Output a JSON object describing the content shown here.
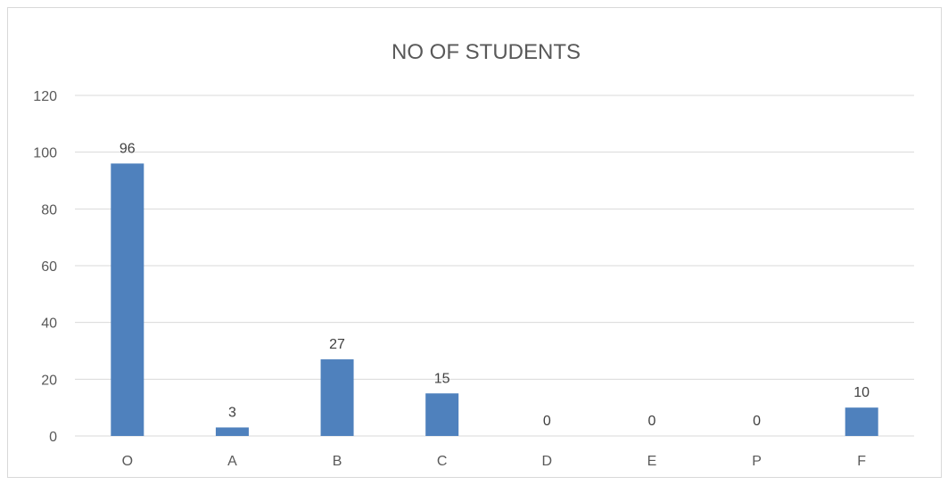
{
  "chart_data": {
    "type": "bar",
    "title": "NO OF STUDENTS",
    "categories": [
      "O",
      "A",
      "B",
      "C",
      "D",
      "E",
      "P",
      "F"
    ],
    "values": [
      96,
      3,
      27,
      15,
      0,
      0,
      0,
      10
    ],
    "ylim": [
      0,
      120
    ],
    "yticks": [
      0,
      20,
      40,
      60,
      80,
      100,
      120
    ],
    "xlabel": "",
    "ylabel": "",
    "grid": true,
    "legend": "none",
    "data_labels": true,
    "bar_color": "#4f81bd",
    "grid_color": "#d9d9d9"
  }
}
